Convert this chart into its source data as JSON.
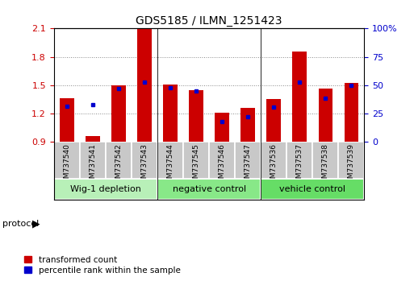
{
  "title": "GDS5185 / ILMN_1251423",
  "samples": [
    "GSM737540",
    "GSM737541",
    "GSM737542",
    "GSM737543",
    "GSM737544",
    "GSM737545",
    "GSM737546",
    "GSM737547",
    "GSM737536",
    "GSM737537",
    "GSM737538",
    "GSM737539"
  ],
  "red_values": [
    1.36,
    0.96,
    1.5,
    2.1,
    1.51,
    1.45,
    1.21,
    1.26,
    1.35,
    1.86,
    1.46,
    1.52
  ],
  "blue_values": [
    1.28,
    1.295,
    1.46,
    1.535,
    1.475,
    1.435,
    1.115,
    1.165,
    1.265,
    1.535,
    1.36,
    1.5
  ],
  "y_min": 0.9,
  "y_max": 2.1,
  "yticks": [
    0.9,
    1.2,
    1.5,
    1.8,
    2.1
  ],
  "right_yticks_pct": [
    0,
    25,
    50,
    75,
    100
  ],
  "right_ytick_labels": [
    "0",
    "25",
    "50",
    "75",
    "100%"
  ],
  "bar_color": "#cc0000",
  "marker_color": "#0000cc",
  "bar_width": 0.55,
  "baseline": 0.9,
  "groups": [
    {
      "label": "Wig-1 depletion",
      "start": 0,
      "end": 4
    },
    {
      "label": "negative control",
      "start": 4,
      "end": 8
    },
    {
      "label": "vehicle control",
      "start": 8,
      "end": 12
    }
  ],
  "group_colors": [
    "#b8f0b8",
    "#88e888",
    "#66dd66"
  ],
  "sample_box_color": "#c8c8c8",
  "left_tick_color": "#cc0000",
  "right_tick_color": "#0000cc",
  "title_fontsize": 10,
  "tick_fontsize": 8,
  "group_fontsize": 8,
  "legend_fontsize": 7.5,
  "protocol_fontsize": 8
}
